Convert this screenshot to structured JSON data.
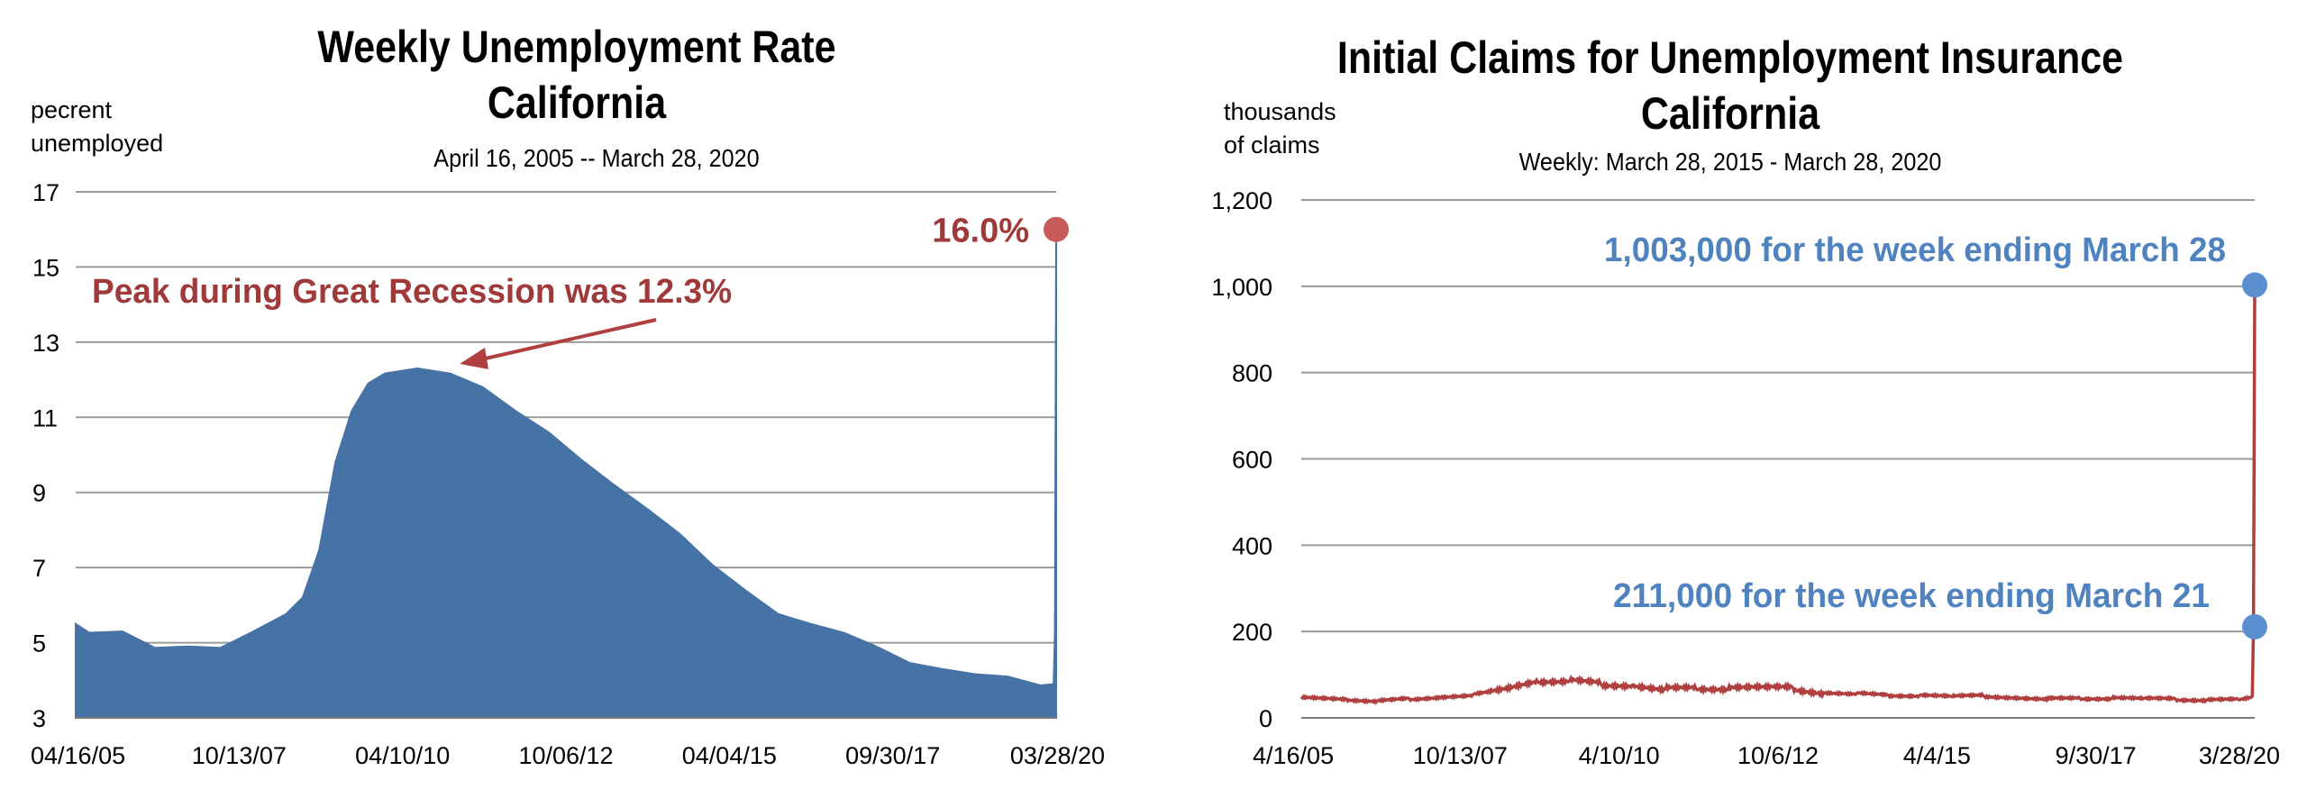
{
  "charts": [
    {
      "title_line1": "Weekly Unemployment Rate",
      "title_line2": "California",
      "subtitle": "April 16, 2005 -- March 28, 2020",
      "ylabel_line1": "pecrent",
      "ylabel_line2": "unemployed",
      "peak_label": "16.0%",
      "annotation": "Peak during Great Recession was 12.3%",
      "colors": {
        "fill": "#4673a5",
        "marker": "#c85a5a",
        "annotation": "#a03a3a",
        "arrow": "#b04040"
      }
    },
    {
      "title_line1": "Initial Claims for Unemployment Insurance",
      "title_line2": "California",
      "subtitle": "Weekly: March 28, 2015 - March 28, 2020",
      "ylabel_line1": "thousands",
      "ylabel_line2": "of claims",
      "annotation_top": "1,003,000 for the week ending March 28",
      "annotation_bottom": "211,000 for the week ending March 21",
      "colors": {
        "line": "#b04040",
        "marker": "#5b8fd0",
        "annotation": "#4f83c0"
      }
    }
  ],
  "chart_data": [
    {
      "type": "area",
      "title": "Weekly Unemployment Rate California",
      "subtitle": "April 16, 2005 -- March 28, 2020",
      "ylabel": "pecrent unemployed",
      "xlabel": "",
      "ylim": [
        3,
        17
      ],
      "yticks": [
        3,
        5,
        7,
        9,
        11,
        13,
        15,
        17
      ],
      "xtick_labels": [
        "04/16/05",
        "10/13/07",
        "04/10/10",
        "10/06/12",
        "04/04/15",
        "09/30/17",
        "03/28/20"
      ],
      "grid": true,
      "x_start": "2005-04-16",
      "x_end": "2020-03-28",
      "x": [
        "2005-04-16",
        "2005-07-01",
        "2006-01-01",
        "2006-07-01",
        "2007-01-01",
        "2007-07-01",
        "2008-01-01",
        "2008-07-01",
        "2008-10-01",
        "2009-01-01",
        "2009-04-01",
        "2009-07-01",
        "2009-10-01",
        "2010-01-01",
        "2010-07-01",
        "2011-01-01",
        "2011-07-01",
        "2012-01-01",
        "2012-07-01",
        "2013-01-01",
        "2013-07-01",
        "2014-01-01",
        "2014-07-01",
        "2015-01-01",
        "2015-07-01",
        "2016-01-01",
        "2016-07-01",
        "2017-01-01",
        "2017-07-01",
        "2018-01-01",
        "2018-07-01",
        "2019-01-01",
        "2019-07-01",
        "2020-01-01",
        "2020-03-14",
        "2020-03-21",
        "2020-03-28"
      ],
      "values": [
        5.5,
        5.3,
        5.3,
        4.9,
        4.9,
        4.9,
        5.3,
        5.8,
        6.2,
        7.5,
        9.8,
        11.2,
        11.9,
        12.2,
        12.3,
        12.2,
        11.8,
        11.2,
        10.6,
        9.9,
        9.2,
        8.6,
        7.9,
        7.1,
        6.4,
        5.8,
        5.5,
        5.3,
        4.9,
        4.5,
        4.3,
        4.2,
        4.1,
        3.9,
        3.9,
        5.3,
        16.0
      ],
      "series": [
        {
          "name": "",
          "color": "#4673a5"
        }
      ],
      "annotations": [
        "Peak during Great Recession was 12.3%",
        "16.0%"
      ]
    },
    {
      "type": "line",
      "title": "Initial Claims for Unemployment Insurance California",
      "subtitle": "Weekly: March 28, 2015 - March 28, 2020",
      "ylabel": "thousands of claims",
      "xlabel": "",
      "ylim": [
        0,
        1200
      ],
      "yticks": [
        0,
        200,
        400,
        600,
        800,
        1000,
        1200
      ],
      "ytick_labels": [
        "0",
        "200",
        "400",
        "600",
        "800",
        "1,000",
        "1,200"
      ],
      "xtick_labels": [
        "4/16/05",
        "10/13/07",
        "4/10/10",
        "10/6/12",
        "4/4/15",
        "9/30/17",
        "3/28/20"
      ],
      "grid": true,
      "x_start": "2005-04-16",
      "x_end": "2020-03-28",
      "x": [
        "2005-04-16",
        "2006-01-01",
        "2006-07-01",
        "2007-01-01",
        "2007-07-01",
        "2008-01-01",
        "2008-07-01",
        "2009-01-01",
        "2009-07-01",
        "2010-01-01",
        "2010-07-01",
        "2011-01-01",
        "2011-07-01",
        "2012-01-01",
        "2012-07-01",
        "2013-01-01",
        "2013-07-01",
        "2014-01-01",
        "2014-07-01",
        "2015-01-01",
        "2015-07-01",
        "2016-01-01",
        "2016-07-01",
        "2017-01-01",
        "2017-07-01",
        "2018-01-01",
        "2018-07-01",
        "2019-01-01",
        "2019-07-01",
        "2020-01-01",
        "2020-03-14",
        "2020-03-21",
        "2020-03-28"
      ],
      "values": [
        45,
        40,
        38,
        45,
        50,
        55,
        65,
        80,
        85,
        80,
        78,
        70,
        68,
        65,
        68,
        70,
        60,
        58,
        52,
        50,
        48,
        50,
        48,
        46,
        45,
        44,
        43,
        42,
        42,
        45,
        50,
        211,
        1003
      ],
      "series": [
        {
          "name": "",
          "color": "#b04040"
        }
      ],
      "annotations": [
        "1,003,000 for the week ending March 28",
        "211,000 for the week ending March 21"
      ]
    }
  ]
}
